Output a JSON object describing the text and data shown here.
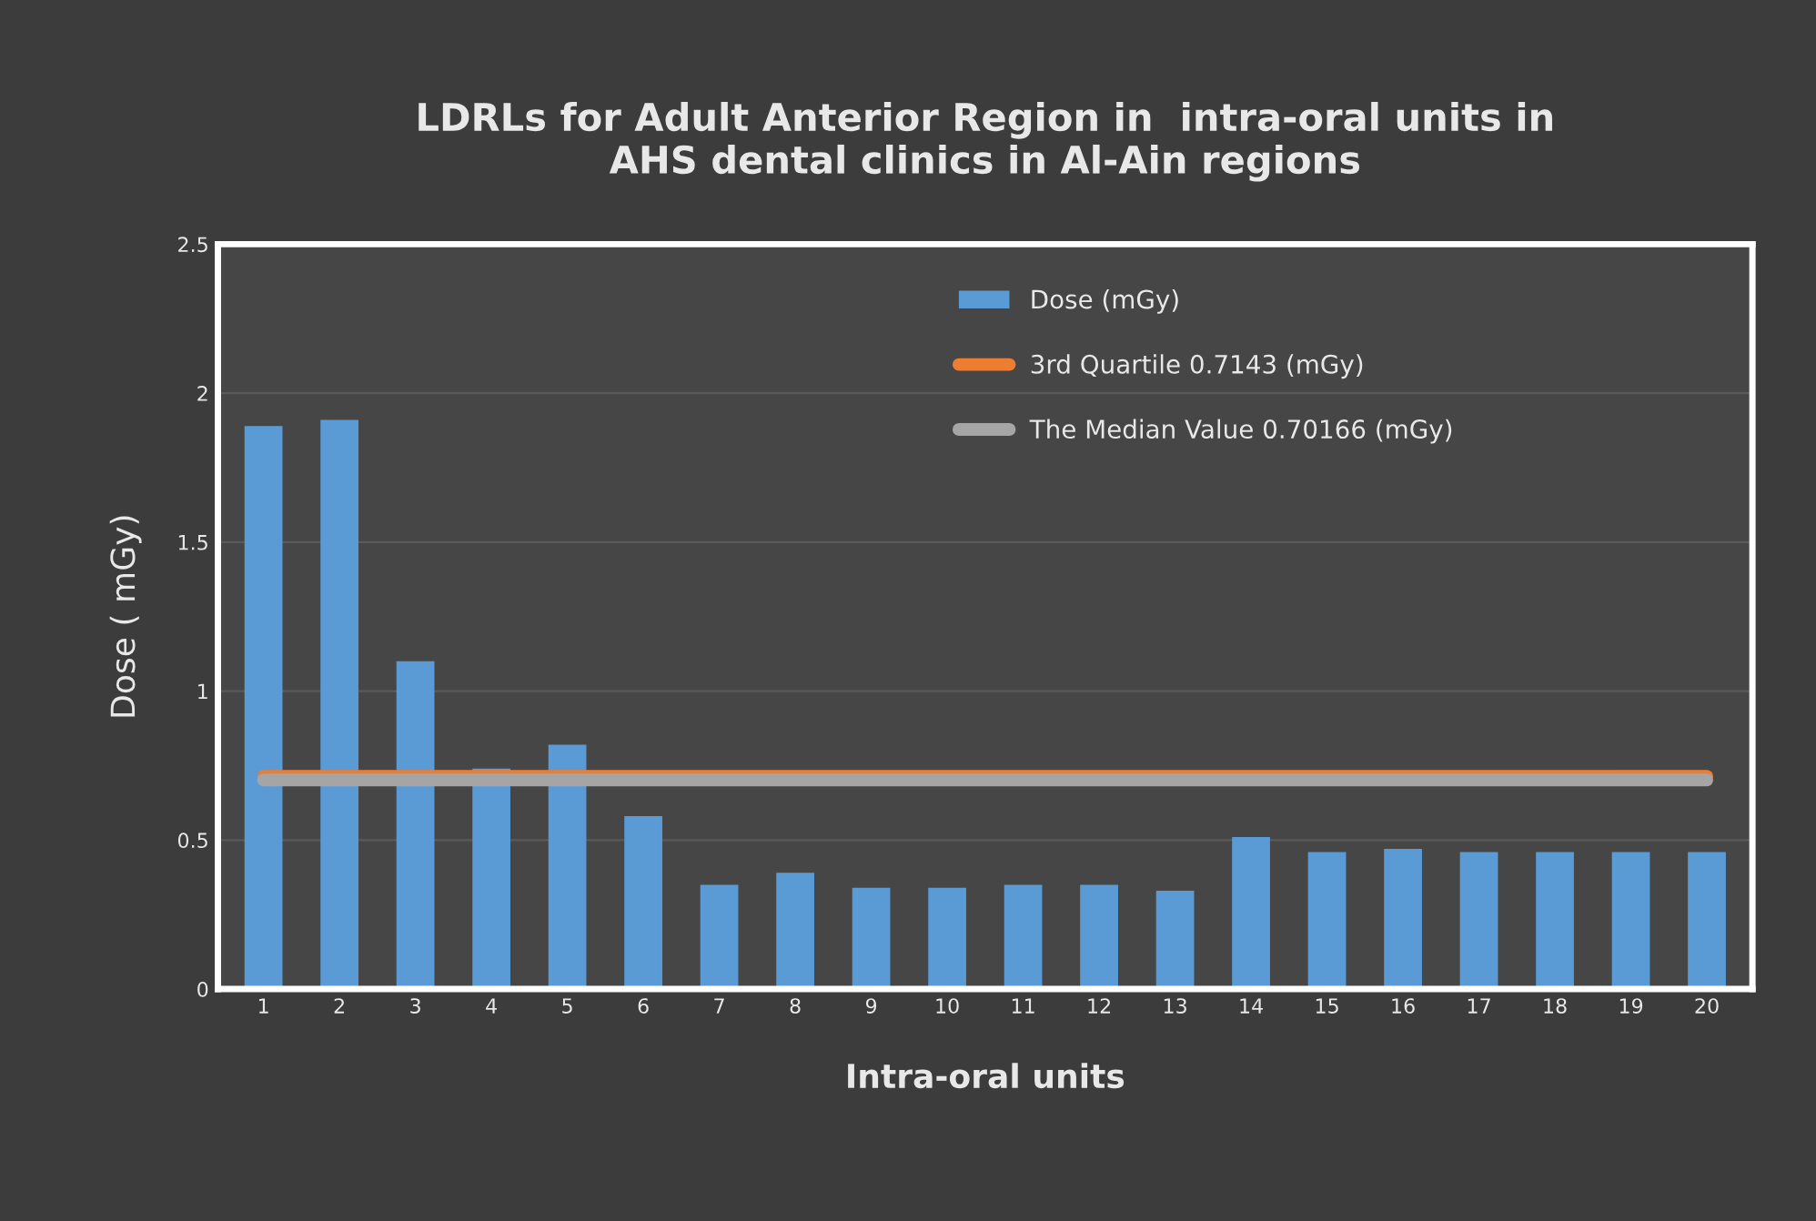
{
  "chart_data": {
    "type": "bar",
    "title": "LDRLs for Adult Anterior Region in  intra-oral units in\nAHS dental clinics in Al-Ain regions",
    "xlabel": "Intra-oral units",
    "ylabel": "Dose ( mGy)",
    "categories": [
      "1",
      "2",
      "3",
      "4",
      "5",
      "6",
      "7",
      "8",
      "9",
      "10",
      "11",
      "12",
      "13",
      "14",
      "15",
      "16",
      "17",
      "18",
      "19",
      "20"
    ],
    "series": [
      {
        "name": "Dose (mGy)",
        "color": "#5b9bd5",
        "values": [
          1.89,
          1.91,
          1.1,
          0.74,
          0.82,
          0.58,
          0.35,
          0.39,
          0.34,
          0.34,
          0.35,
          0.35,
          0.33,
          0.51,
          0.46,
          0.47,
          0.46,
          0.46,
          0.46,
          0.46
        ]
      },
      {
        "name": "3rd Quartile 0.7143 (mGy)",
        "type": "line",
        "color": "#ed7d31",
        "values": [
          0.7143,
          0.7143,
          0.7143,
          0.7143,
          0.7143,
          0.7143,
          0.7143,
          0.7143,
          0.7143,
          0.7143,
          0.7143,
          0.7143,
          0.7143,
          0.7143,
          0.7143,
          0.7143,
          0.7143,
          0.7143,
          0.7143,
          0.7143
        ]
      },
      {
        "name": "The Median Value 0.70166 (mGy)",
        "type": "line",
        "color": "#a5a5a5",
        "values": [
          0.70166,
          0.70166,
          0.70166,
          0.70166,
          0.70166,
          0.70166,
          0.70166,
          0.70166,
          0.70166,
          0.70166,
          0.70166,
          0.70166,
          0.70166,
          0.70166,
          0.70166,
          0.70166,
          0.70166,
          0.70166,
          0.70166,
          0.70166
        ]
      }
    ],
    "ylim": [
      0,
      2.5
    ],
    "yticks": [
      0,
      0.5,
      1,
      1.5,
      2,
      2.5
    ],
    "grid": "y",
    "legend": "top right"
  }
}
